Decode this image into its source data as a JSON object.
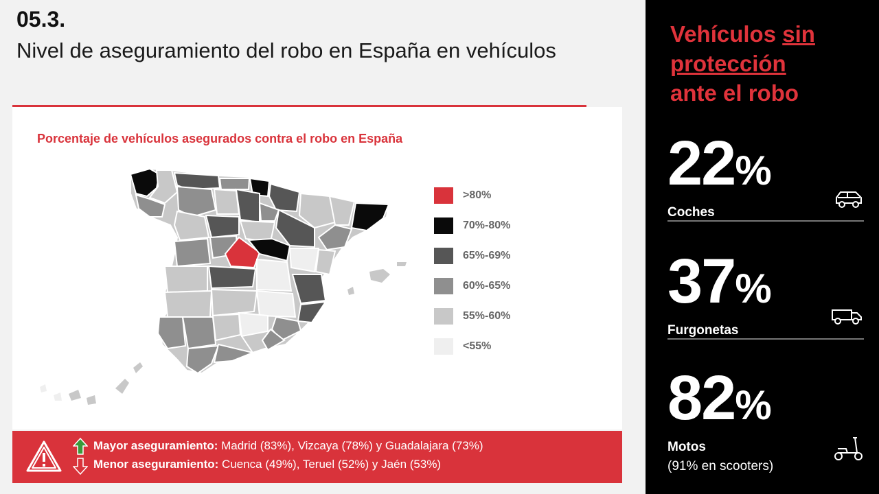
{
  "header": {
    "section_number": "05.3.",
    "title": "Nivel de aseguramiento del robo en España en vehículos"
  },
  "map": {
    "heading": "Porcentaje de vehículos asegurados contra el robo en España",
    "legend": [
      {
        "label": ">80%",
        "color": "#d9333b"
      },
      {
        "label": "70%-80%",
        "color": "#0a0a0a"
      },
      {
        "label": "65%-69%",
        "color": "#565656"
      },
      {
        "label": "60%-65%",
        "color": "#8f8f8f"
      },
      {
        "label": "55%-60%",
        "color": "#c8c8c8"
      },
      {
        "label": "<55%",
        "color": "#efefef"
      }
    ]
  },
  "footer": {
    "higher_label": "Mayor aseguramiento:",
    "higher_text": " Madrid (83%), Vizcaya (78%) y Guadalajara (73%)",
    "lower_label": "Menor aseguramiento:",
    "lower_text": " Cuenca (49%), Teruel (52%) y Jaén (53%)"
  },
  "right_panel": {
    "title_part1": "Vehículos ",
    "title_underlined": "sin protección",
    "title_part2": "ante el robo",
    "stats": [
      {
        "value": "22",
        "unit": "%",
        "label": "Coches",
        "icon": "car-icon"
      },
      {
        "value": "37",
        "unit": "%",
        "label": "Furgonetas",
        "icon": "van-icon"
      },
      {
        "value": "82",
        "unit": "%",
        "label": "Motos",
        "note": "(91% en scooters)",
        "icon": "scooter-icon"
      }
    ]
  },
  "colors": {
    "accent_red": "#d9333b",
    "panel_black": "#000000"
  }
}
